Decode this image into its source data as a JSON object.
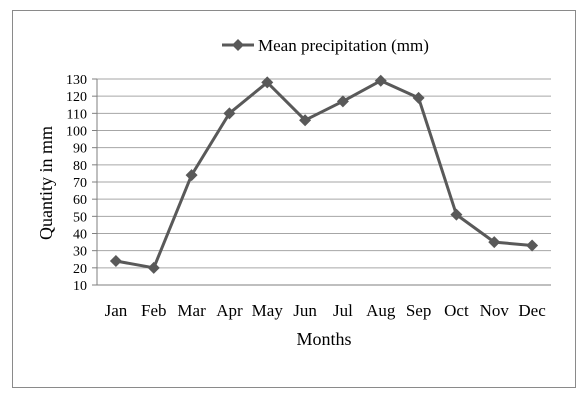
{
  "chart_data": {
    "type": "line",
    "title": "",
    "xlabel": "Months",
    "ylabel": "Quantity in mm",
    "categories": [
      "Jan",
      "Feb",
      "Mar",
      "Apr",
      "May",
      "Jun",
      "Jul",
      "Aug",
      "Sep",
      "Oct",
      "Nov",
      "Dec"
    ],
    "series": [
      {
        "name": "Mean precipitation (mm)",
        "values": [
          24,
          20,
          74,
          110,
          128,
          106,
          117,
          129,
          119,
          51,
          35,
          33
        ],
        "color": "#595959",
        "marker": "diamond"
      }
    ],
    "ylim": [
      10,
      130
    ],
    "yticks": [
      "10",
      "20",
      "30",
      "40",
      "50",
      "60",
      "70",
      "80",
      "90",
      "100",
      "110",
      "120",
      "130"
    ],
    "grid": true,
    "legend_position": "top"
  }
}
